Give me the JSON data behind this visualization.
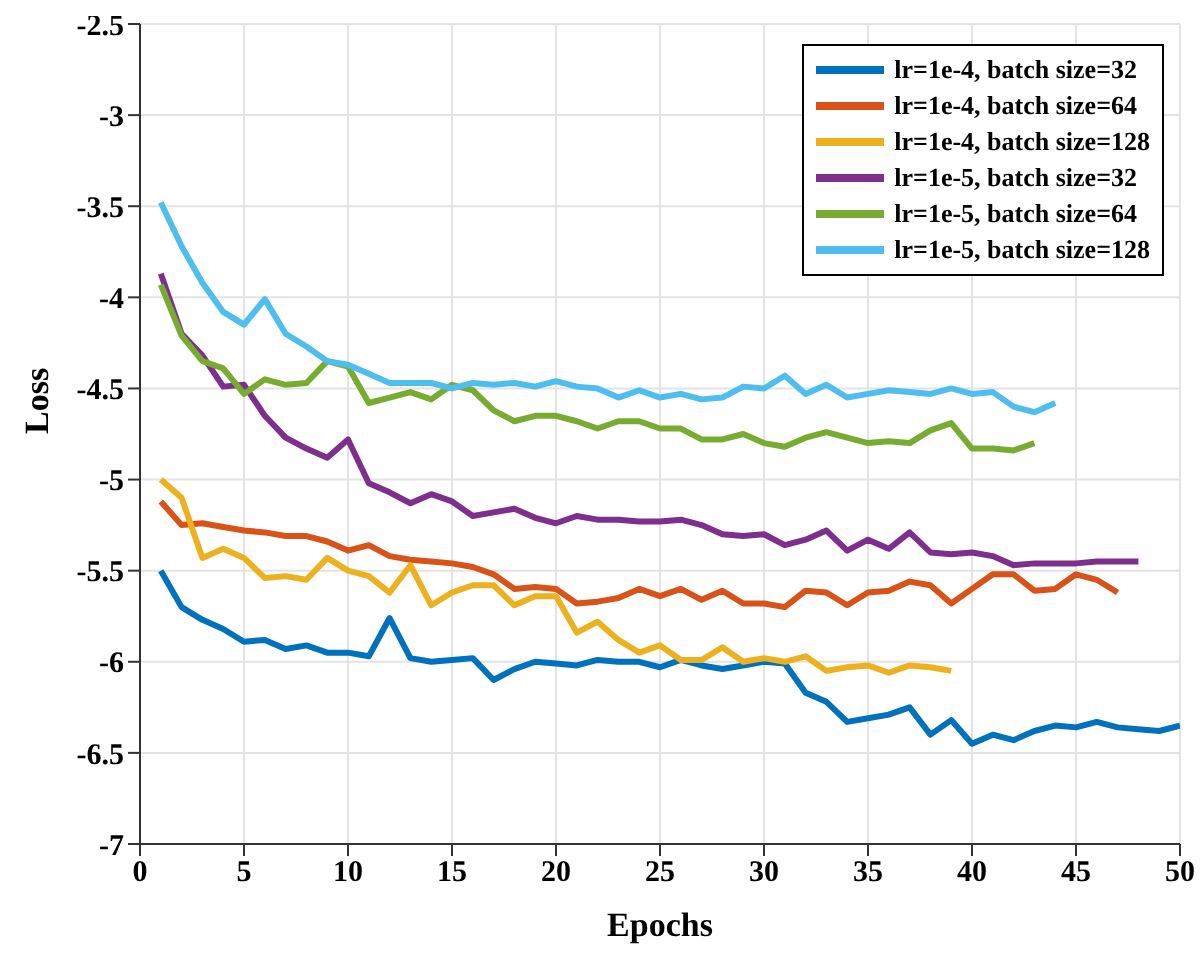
{
  "chart_data": {
    "type": "line",
    "xlabel": "Epochs",
    "ylabel": "Loss",
    "xlim": [
      0,
      50
    ],
    "xticks": [
      0,
      5,
      10,
      15,
      20,
      25,
      30,
      35,
      40,
      45,
      50
    ],
    "ylim": [
      -7,
      -2.5
    ],
    "yticks": [
      -7,
      -6.5,
      -6,
      -5.5,
      -5,
      -4.5,
      -4,
      -3.5,
      -3,
      -2.5
    ],
    "grid": true,
    "legend": "top right",
    "marker": "none",
    "line_style": "solid",
    "series": [
      {
        "name": "lr=1e-4, batch size=32",
        "color": "#0072bd",
        "x": [
          1,
          2,
          3,
          4,
          5,
          6,
          7,
          8,
          9,
          10,
          11,
          12,
          13,
          14,
          15,
          16,
          17,
          18,
          19,
          20,
          21,
          22,
          23,
          24,
          25,
          26,
          27,
          28,
          29,
          30,
          31,
          32,
          33,
          34,
          35,
          36,
          37,
          38,
          39,
          40,
          41,
          42,
          43,
          44,
          45,
          46,
          47,
          48,
          49,
          50
        ],
        "values": [
          -5.5,
          -5.7,
          -5.77,
          -5.82,
          -5.89,
          -5.88,
          -5.93,
          -5.91,
          -5.95,
          -5.95,
          -5.97,
          -5.76,
          -5.98,
          -6.0,
          -5.99,
          -5.98,
          -6.1,
          -6.04,
          -6.0,
          -6.01,
          -6.02,
          -5.99,
          -6.0,
          -6.0,
          -6.03,
          -5.99,
          -6.02,
          -6.04,
          -6.02,
          -6.0,
          -6.01,
          -6.17,
          -6.22,
          -6.33,
          -6.31,
          -6.29,
          -6.25,
          -6.4,
          -6.32,
          -6.45,
          -6.4,
          -6.43,
          -6.38,
          -6.35,
          -6.36,
          -6.33,
          -6.36,
          -6.37,
          -6.38,
          -6.35
        ]
      },
      {
        "name": "lr=1e-4, batch size=64",
        "color": "#d95319",
        "x": [
          1,
          2,
          3,
          4,
          5,
          6,
          7,
          8,
          9,
          10,
          11,
          12,
          13,
          14,
          15,
          16,
          17,
          18,
          19,
          20,
          21,
          22,
          23,
          24,
          25,
          26,
          27,
          28,
          29,
          30,
          31,
          32,
          33,
          34,
          35,
          36,
          37,
          38,
          39,
          40,
          41,
          42,
          43,
          44,
          45,
          46,
          47
        ],
        "values": [
          -5.12,
          -5.25,
          -5.24,
          -5.26,
          -5.28,
          -5.29,
          -5.31,
          -5.31,
          -5.34,
          -5.39,
          -5.36,
          -5.42,
          -5.44,
          -5.45,
          -5.46,
          -5.48,
          -5.52,
          -5.6,
          -5.59,
          -5.6,
          -5.68,
          -5.67,
          -5.65,
          -5.6,
          -5.64,
          -5.6,
          -5.66,
          -5.61,
          -5.68,
          -5.68,
          -5.7,
          -5.61,
          -5.62,
          -5.69,
          -5.62,
          -5.61,
          -5.56,
          -5.58,
          -5.68,
          -5.6,
          -5.52,
          -5.52,
          -5.61,
          -5.6,
          -5.52,
          -5.55,
          -5.62
        ]
      },
      {
        "name": "lr=1e-4, batch size=128",
        "color": "#edb120",
        "x": [
          1,
          2,
          3,
          4,
          5,
          6,
          7,
          8,
          9,
          10,
          11,
          12,
          13,
          14,
          15,
          16,
          17,
          18,
          19,
          20,
          21,
          22,
          23,
          24,
          25,
          26,
          27,
          28,
          29,
          30,
          31,
          32,
          33,
          34,
          35,
          36,
          37,
          38,
          39
        ],
        "values": [
          -5.0,
          -5.1,
          -5.43,
          -5.38,
          -5.43,
          -5.54,
          -5.53,
          -5.55,
          -5.43,
          -5.5,
          -5.53,
          -5.62,
          -5.47,
          -5.69,
          -5.62,
          -5.58,
          -5.58,
          -5.69,
          -5.64,
          -5.64,
          -5.84,
          -5.78,
          -5.88,
          -5.95,
          -5.91,
          -5.99,
          -5.99,
          -5.92,
          -6.0,
          -5.98,
          -6.0,
          -5.97,
          -6.05,
          -6.03,
          -6.02,
          -6.06,
          -6.02,
          -6.03,
          -6.05
        ]
      },
      {
        "name": "lr=1e-5, batch size=32",
        "color": "#7e2f8e",
        "x": [
          1,
          2,
          3,
          4,
          5,
          6,
          7,
          8,
          9,
          10,
          11,
          12,
          13,
          14,
          15,
          16,
          17,
          18,
          19,
          20,
          21,
          22,
          23,
          24,
          25,
          26,
          27,
          28,
          29,
          30,
          31,
          32,
          33,
          34,
          35,
          36,
          37,
          38,
          39,
          40,
          41,
          42,
          43,
          44,
          45,
          46,
          47,
          48
        ],
        "values": [
          -3.87,
          -4.2,
          -4.32,
          -4.49,
          -4.48,
          -4.65,
          -4.77,
          -4.83,
          -4.88,
          -4.78,
          -5.02,
          -5.07,
          -5.13,
          -5.08,
          -5.12,
          -5.2,
          -5.18,
          -5.16,
          -5.21,
          -5.24,
          -5.2,
          -5.22,
          -5.22,
          -5.23,
          -5.23,
          -5.22,
          -5.25,
          -5.3,
          -5.31,
          -5.3,
          -5.36,
          -5.33,
          -5.28,
          -5.39,
          -5.33,
          -5.38,
          -5.29,
          -5.4,
          -5.41,
          -5.4,
          -5.42,
          -5.47,
          -5.46,
          -5.46,
          -5.46,
          -5.45,
          -5.45,
          -5.45
        ]
      },
      {
        "name": "lr=1e-5, batch size=64",
        "color": "#77ac30",
        "x": [
          1,
          2,
          3,
          4,
          5,
          6,
          7,
          8,
          9,
          10,
          11,
          12,
          13,
          14,
          15,
          16,
          17,
          18,
          19,
          20,
          21,
          22,
          23,
          24,
          25,
          26,
          27,
          28,
          29,
          30,
          31,
          32,
          33,
          34,
          35,
          36,
          37,
          38,
          39,
          40,
          41,
          42,
          43
        ],
        "values": [
          -3.93,
          -4.21,
          -4.35,
          -4.39,
          -4.53,
          -4.45,
          -4.48,
          -4.47,
          -4.35,
          -4.38,
          -4.58,
          -4.55,
          -4.52,
          -4.56,
          -4.48,
          -4.51,
          -4.62,
          -4.68,
          -4.65,
          -4.65,
          -4.68,
          -4.72,
          -4.68,
          -4.68,
          -4.72,
          -4.72,
          -4.78,
          -4.78,
          -4.75,
          -4.8,
          -4.82,
          -4.77,
          -4.74,
          -4.77,
          -4.8,
          -4.79,
          -4.8,
          -4.73,
          -4.69,
          -4.83,
          -4.83,
          -4.84,
          -4.8
        ]
      },
      {
        "name": "lr=1e-5, batch size=128",
        "color": "#4dbeee",
        "x": [
          1,
          2,
          3,
          4,
          5,
          6,
          7,
          8,
          9,
          10,
          11,
          12,
          13,
          14,
          15,
          16,
          17,
          18,
          19,
          20,
          21,
          22,
          23,
          24,
          25,
          26,
          27,
          28,
          29,
          30,
          31,
          32,
          33,
          34,
          35,
          36,
          37,
          38,
          39,
          40,
          41,
          42,
          43,
          44
        ],
        "values": [
          -3.48,
          -3.72,
          -3.92,
          -4.08,
          -4.15,
          -4.01,
          -4.2,
          -4.27,
          -4.35,
          -4.37,
          -4.42,
          -4.47,
          -4.47,
          -4.47,
          -4.5,
          -4.47,
          -4.48,
          -4.47,
          -4.49,
          -4.46,
          -4.49,
          -4.5,
          -4.55,
          -4.51,
          -4.55,
          -4.53,
          -4.56,
          -4.55,
          -4.49,
          -4.5,
          -4.43,
          -4.53,
          -4.48,
          -4.55,
          -4.53,
          -4.51,
          -4.52,
          -4.53,
          -4.5,
          -4.53,
          -4.52,
          -4.6,
          -4.63,
          -4.58
        ]
      }
    ]
  }
}
